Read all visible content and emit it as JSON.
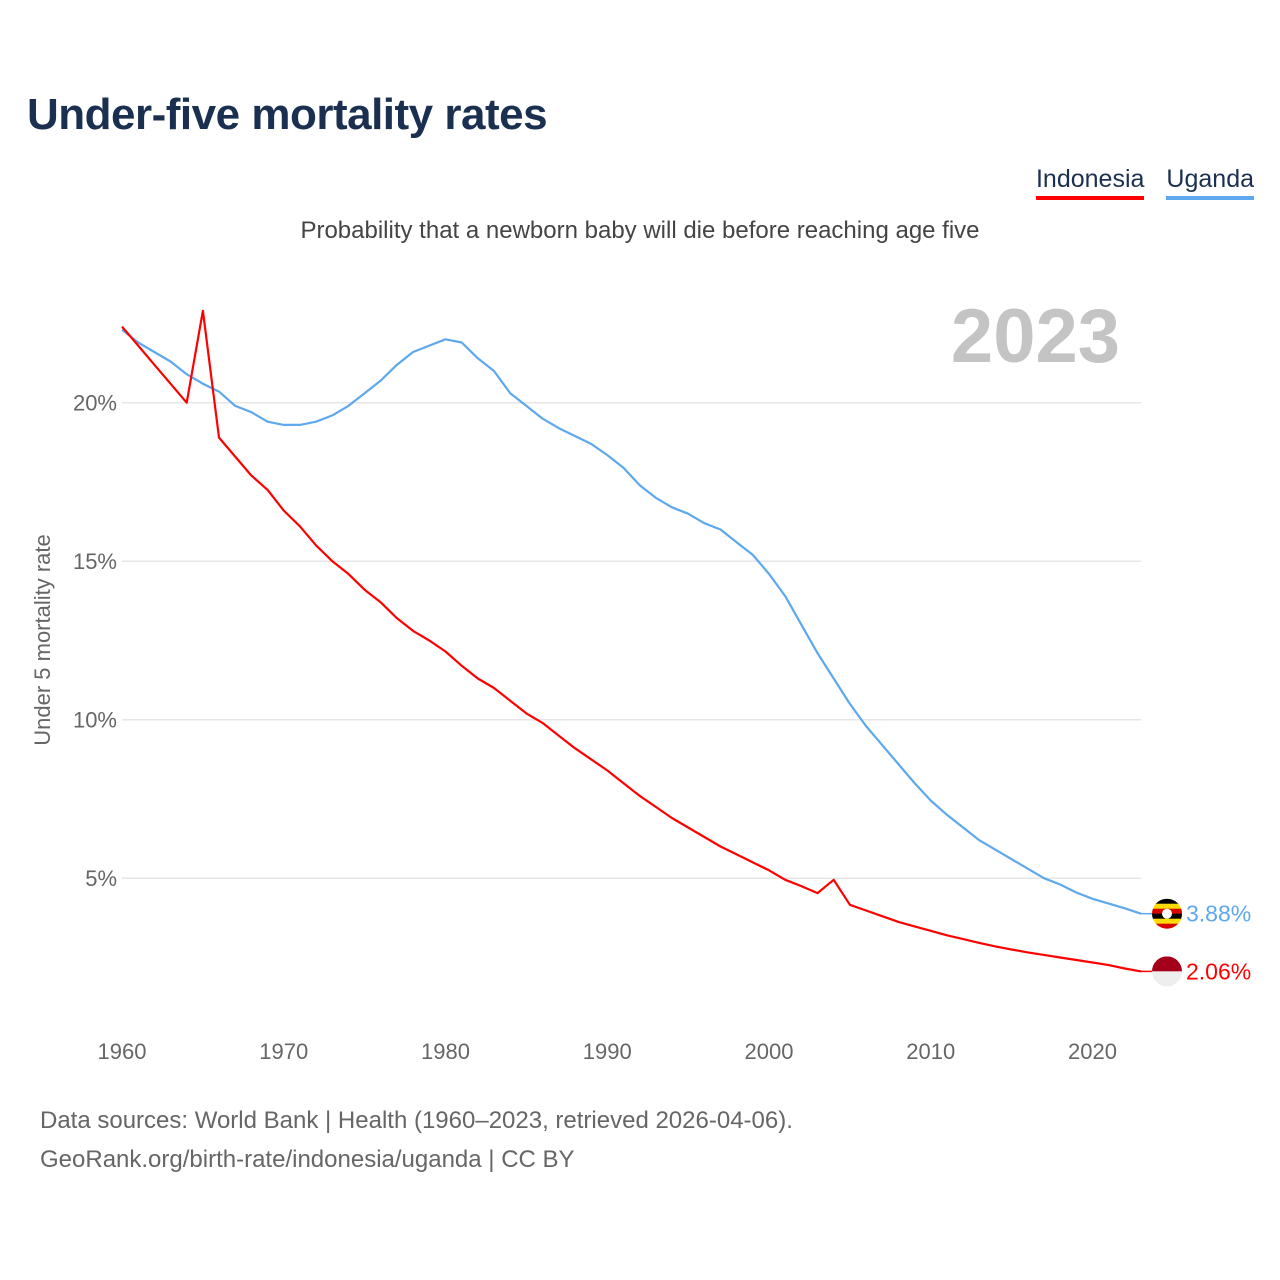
{
  "title": "Under-five mortality rates",
  "subtitle": "Probability that a newborn baby will die before reaching age five",
  "footer": {
    "line1": "Data sources: World Bank | Health (1960–2023, retrieved 2026-04-06).",
    "line2": "GeoRank.org/birth-rate/indonesia/uganda | CC BY"
  },
  "chart_data": {
    "type": "line",
    "title": "Under-five mortality rates",
    "ylabel": "Under 5 mortality rate",
    "xlabel": "",
    "year_label": "2023",
    "xlim": [
      1960,
      2023
    ],
    "ylim": [
      0,
      23
    ],
    "yticks": [
      {
        "v": 5,
        "label": "5%"
      },
      {
        "v": 10,
        "label": "10%"
      },
      {
        "v": 15,
        "label": "15%"
      },
      {
        "v": 20,
        "label": "20%"
      }
    ],
    "xticks": [
      {
        "v": 1960,
        "label": "1960"
      },
      {
        "v": 1970,
        "label": "1970"
      },
      {
        "v": 1980,
        "label": "1980"
      },
      {
        "v": 1990,
        "label": "1990"
      },
      {
        "v": 2000,
        "label": "2000"
      },
      {
        "v": 2010,
        "label": "2010"
      },
      {
        "v": 2020,
        "label": "2020"
      }
    ],
    "legend_position": "top-right",
    "series": [
      {
        "name": "Indonesia",
        "color": "#ff0000",
        "end_label": "2.06%",
        "flag": "indonesia-flag",
        "values": [
          22.4,
          21.8,
          21.2,
          20.6,
          20.0,
          22.9,
          18.9,
          18.3,
          17.7,
          17.25,
          16.6,
          16.1,
          15.5,
          15.0,
          14.6,
          14.1,
          13.7,
          13.2,
          12.8,
          12.5,
          12.15,
          11.7,
          11.3,
          11.0,
          10.6,
          10.2,
          9.9,
          9.5,
          9.1,
          8.75,
          8.4,
          8.0,
          7.6,
          7.25,
          6.9,
          6.6,
          6.3,
          6.0,
          5.75,
          5.5,
          5.25,
          4.95,
          4.75,
          4.53,
          4.95,
          4.16,
          3.98,
          3.8,
          3.62,
          3.48,
          3.34,
          3.2,
          3.08,
          2.96,
          2.85,
          2.75,
          2.66,
          2.58,
          2.5,
          2.42,
          2.34,
          2.26,
          2.15,
          2.06
        ]
      },
      {
        "name": "Uganda",
        "color": "#5ea8ee",
        "end_label": "3.88%",
        "flag": "uganda-flag",
        "values": [
          22.3,
          21.9,
          21.6,
          21.3,
          20.9,
          20.6,
          20.35,
          19.9,
          19.7,
          19.4,
          19.3,
          19.3,
          19.4,
          19.6,
          19.9,
          20.3,
          20.7,
          21.2,
          21.6,
          21.8,
          22.0,
          21.9,
          21.4,
          21.0,
          20.3,
          19.9,
          19.5,
          19.2,
          18.95,
          18.7,
          18.35,
          17.95,
          17.4,
          17.0,
          16.7,
          16.5,
          16.2,
          16.0,
          15.6,
          15.2,
          14.6,
          13.9,
          13.0,
          12.1,
          11.3,
          10.5,
          9.8,
          9.2,
          8.6,
          8.0,
          7.45,
          7.0,
          6.6,
          6.2,
          5.9,
          5.6,
          5.3,
          5.0,
          4.8,
          4.55,
          4.35,
          4.2,
          4.05,
          3.88
        ]
      }
    ]
  }
}
